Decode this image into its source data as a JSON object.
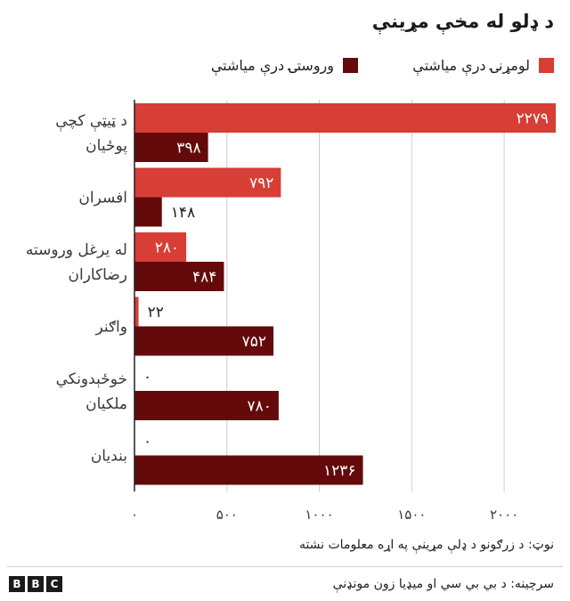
{
  "chart_data": {
    "type": "bar",
    "orientation": "horizontal",
    "title": "د ډلو له مخې مړينې",
    "categories": [
      [
        "د ټيټې کچې",
        "پوځيان"
      ],
      [
        "افسران"
      ],
      [
        "له يرغل وروسته",
        "رضاکاران"
      ],
      [
        "واګنر"
      ],
      [
        "خوځېدونکي",
        "ملکيان"
      ],
      [
        "بنديان"
      ]
    ],
    "series": [
      {
        "name": "لومړنۍ درې مياشتې",
        "color": "#d63e36",
        "values": [
          2279,
          792,
          280,
          22,
          0,
          0
        ],
        "labels": [
          "۲۲۷۹",
          "۷۹۲",
          "۲۸۰",
          "۲۲",
          "۰",
          "۰"
        ]
      },
      {
        "name": "وروستۍ درې مياشتې",
        "color": "#640a0a",
        "values": [
          398,
          148,
          484,
          752,
          780,
          1236
        ],
        "labels": [
          "۳۹۸",
          "۱۴۸",
          "۴۸۴",
          "۷۵۲",
          "۷۸۰",
          "۱۲۳۶"
        ]
      }
    ],
    "xlim": [
      0,
      2279
    ],
    "x_ticks": [
      0,
      500,
      1000,
      1500,
      2000
    ],
    "x_tick_labels": [
      "۰",
      "۵۰۰",
      "۱۰۰۰",
      "۱۵۰۰",
      "۲۰۰۰"
    ],
    "grid": true,
    "legend": "top"
  },
  "note": "نوټ: د زرګونو د ډلې مړينې په اړه معلومات نشته",
  "source": "سرچينه: د بي بي سي او ميډيا زون مونډنې",
  "logo_letters": [
    "B",
    "B",
    "C"
  ]
}
